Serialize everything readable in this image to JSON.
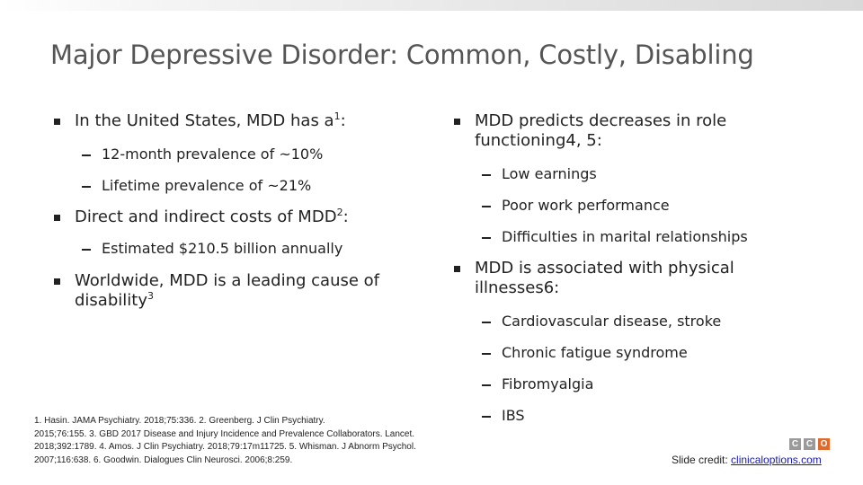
{
  "title": "Major Depressive Disorder: Common, Costly, Disabling",
  "left": {
    "b1": {
      "text": "In the United States, MDD has a",
      "sup": "1",
      "tail": ":"
    },
    "b1_subs": [
      "12-month prevalence of ~10%",
      "Lifetime prevalence of ~21%"
    ],
    "b2": {
      "text": "Direct and indirect costs of MDD",
      "sup": "2",
      "tail": ":"
    },
    "b2_subs": [
      "Estimated $210.5 billion annually"
    ],
    "b3": {
      "text": "Worldwide, MDD is a leading cause of disability",
      "sup": "3"
    }
  },
  "right": {
    "b1": {
      "line1": "MDD predicts decreases in role",
      "line2": "functioning4, 5:"
    },
    "b1_subs": [
      "Low earnings",
      "Poor work performance",
      "Difficulties in marital relationships"
    ],
    "b2": {
      "line1": "MDD is associated with physical",
      "line2": "illnesses6:"
    },
    "b2_subs": [
      "Cardiovascular disease, stroke",
      "Chronic fatigue syndrome",
      "Fibromyalgia",
      "IBS"
    ]
  },
  "references": [
    "1.   Hasin. JAMA Psychiatry. 2018;75:336.  2.  Greenberg. J Clin Psychiatry.",
    "2015;76:155. 3.  GBD 2017 Disease and Injury Incidence and Prevalence Collaborators. Lancet.",
    "2018;392:1789. 4. Amos. J Clin Psychiatry. 2018;79:17m11725.  5. Whisman. J Abnorm Psychol.",
    "2007;116:638. 6.  Goodwin. Dialogues Clin Neurosci. 2006;8:259."
  ],
  "logo": {
    "letters": [
      "C",
      "C",
      "O"
    ],
    "colors": [
      "#9a9a9a",
      "#9a9a9a",
      "#e06a2c"
    ]
  },
  "credit": {
    "label": "Slide credit:",
    "link": "clinicaloptions.com"
  }
}
